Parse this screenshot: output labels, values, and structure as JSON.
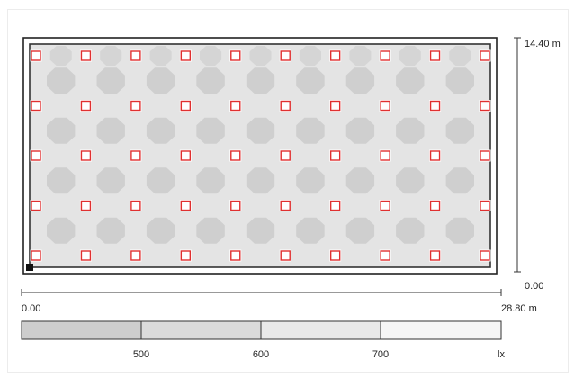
{
  "plan": {
    "height_label": "14.40 m",
    "y_zero_label": "0.00",
    "x_zero_label": "0.00",
    "width_label": "28.80 m",
    "luminaire_grid": {
      "columns": 10,
      "rows": 5
    }
  },
  "legend": {
    "scale": [
      {
        "value": "500"
      },
      {
        "value": "600"
      },
      {
        "value": "700"
      }
    ],
    "unit": "lx"
  },
  "colors": {
    "floor": "#e4e4e4",
    "isolux_blob": "#cfcfcf",
    "luminaire": "#e03030",
    "wall": "#222222",
    "legend_band_1": "#cdcdcd",
    "legend_band_2": "#dbdbdb",
    "legend_band_3": "#e9e9e9",
    "legend_band_4": "#f6f6f6"
  }
}
